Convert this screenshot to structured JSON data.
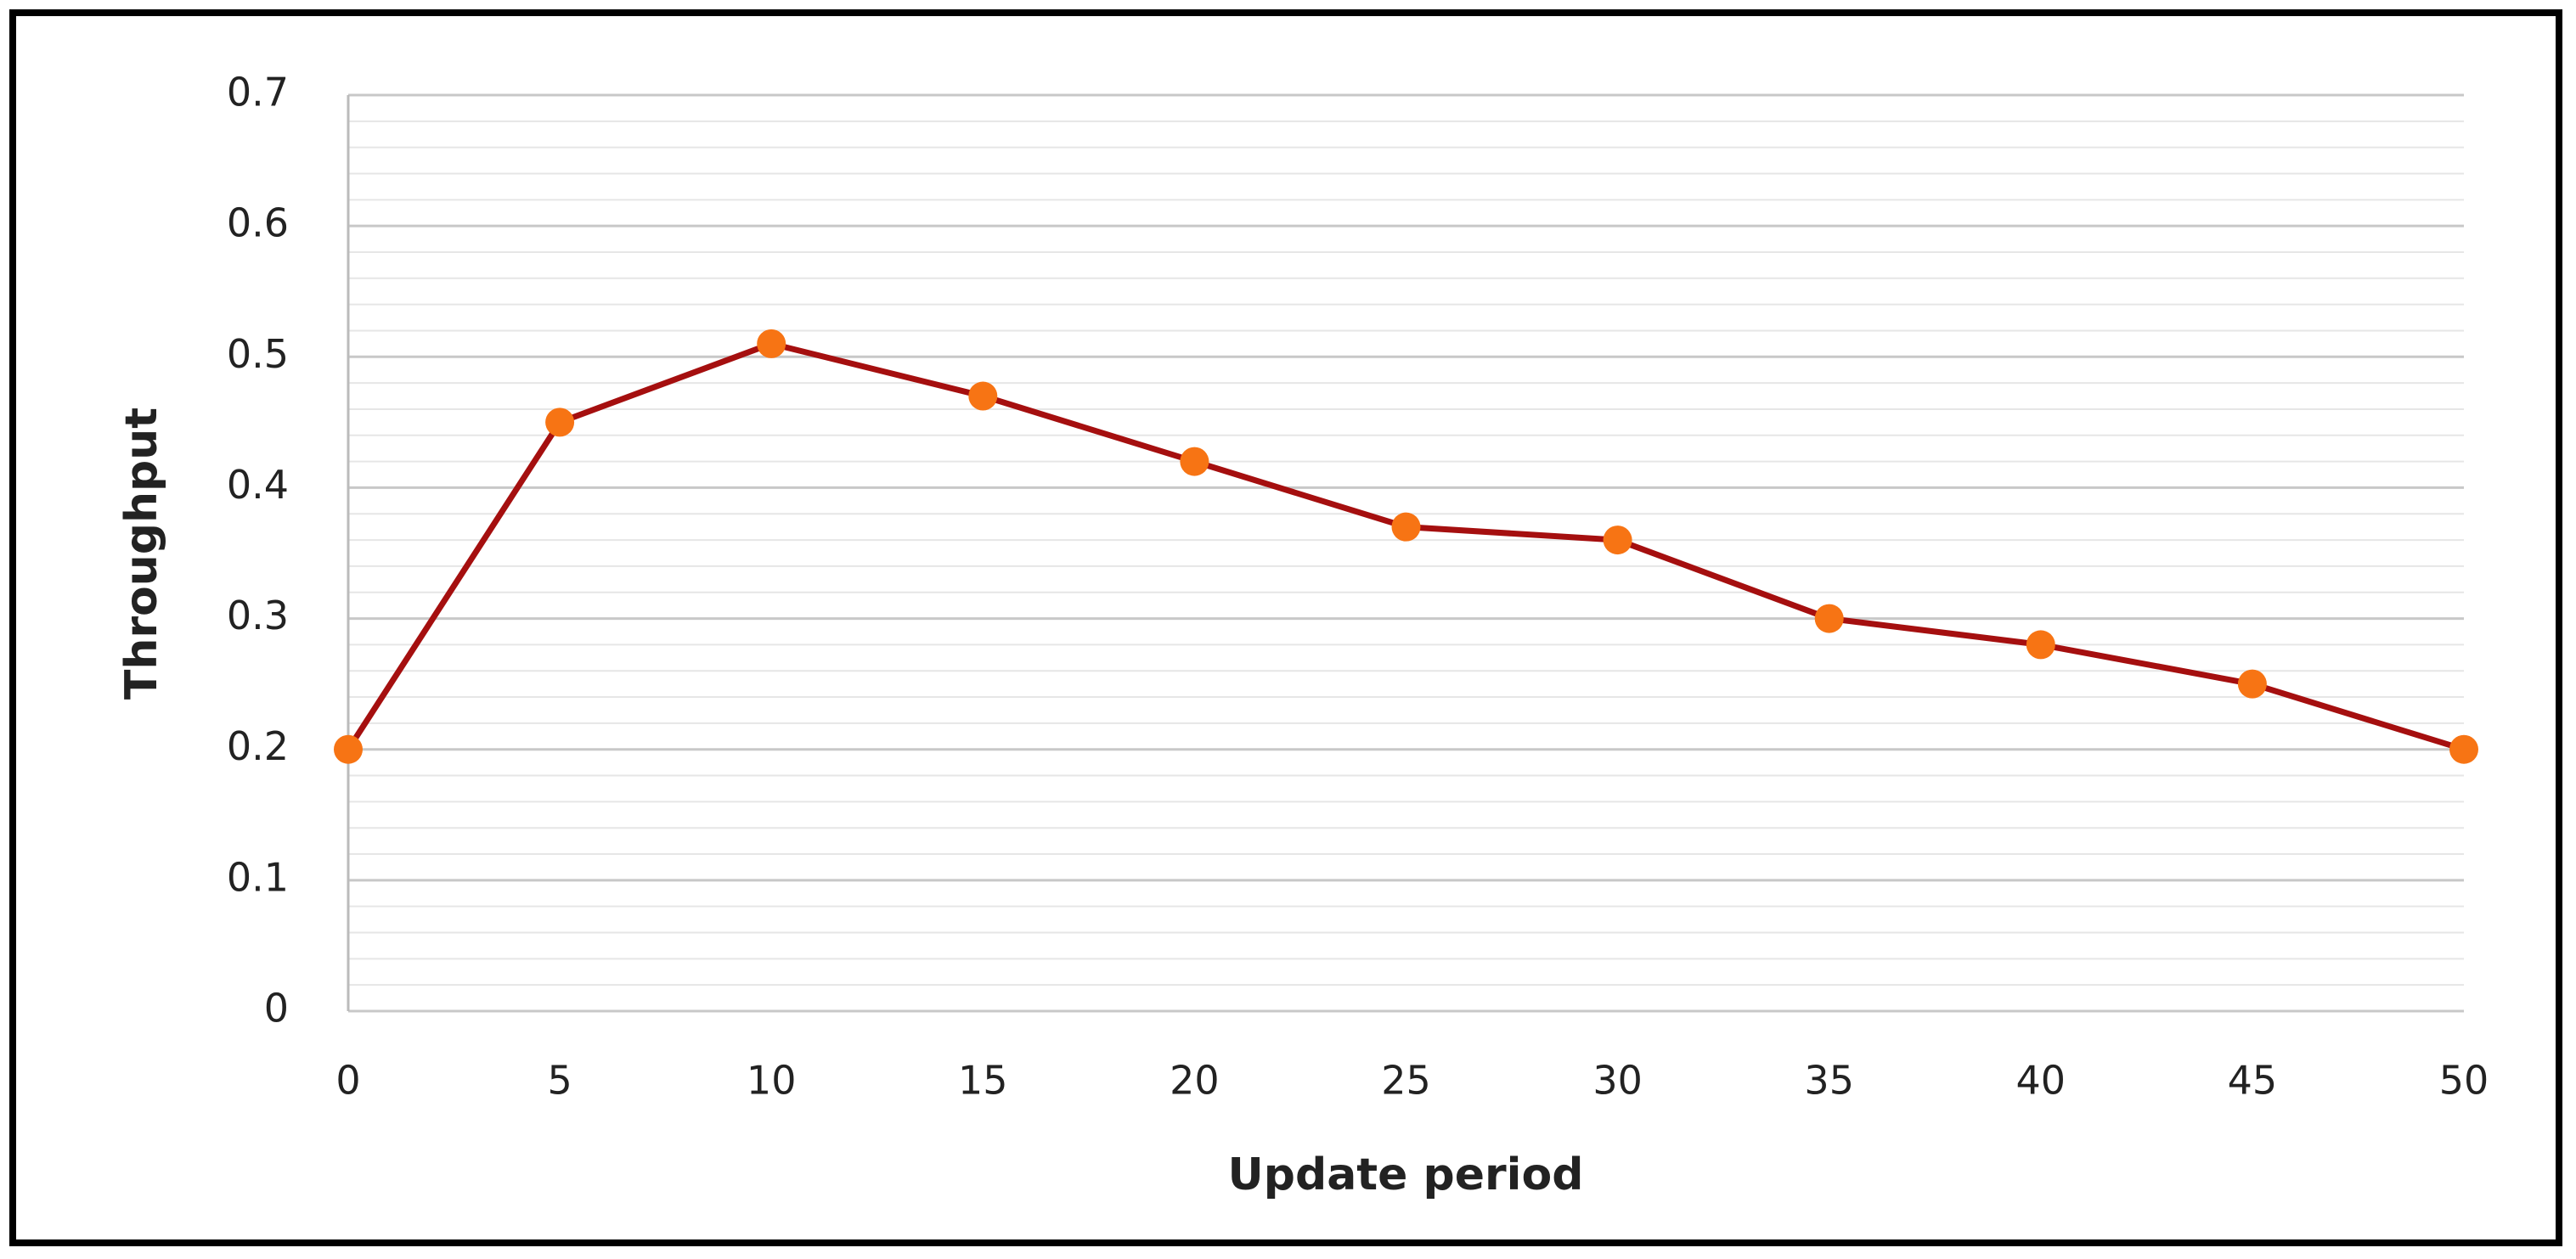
{
  "chart_data": {
    "type": "line",
    "x_label": "Update period",
    "y_label": "Throughput",
    "x": [
      0,
      5,
      10,
      15,
      20,
      25,
      30,
      35,
      40,
      45,
      50
    ],
    "series": [
      {
        "color": "#a50f0f",
        "marker_color": "#f77414",
        "values": [
          0.2,
          0.45,
          0.51,
          0.47,
          0.42,
          0.37,
          0.36,
          0.3,
          0.28,
          0.25,
          0.2
        ]
      }
    ],
    "xlim": [
      0,
      50
    ],
    "xticks": [
      0,
      5,
      10,
      15,
      20,
      25,
      30,
      35,
      40,
      45,
      50
    ],
    "ylim": [
      0,
      0.7
    ],
    "yticks": [
      0,
      0.1,
      0.2,
      0.3,
      0.4,
      0.5,
      0.6,
      0.7
    ],
    "grid": true,
    "minor_grid": true
  }
}
